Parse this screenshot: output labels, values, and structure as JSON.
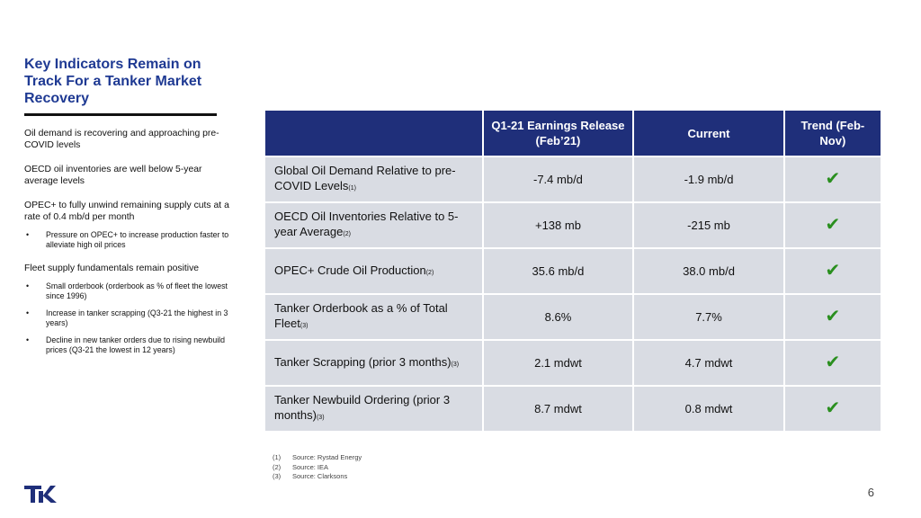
{
  "title": "Key Indicators Remain on Track For a Tanker Market Recovery",
  "bullets": [
    {
      "text": "Oil demand is recovering and approaching pre-COVID levels",
      "subs": []
    },
    {
      "text": "OECD oil inventories are well below 5-year average levels",
      "subs": []
    },
    {
      "text": "OPEC+ to fully unwind remaining supply cuts at a rate of 0.4 mb/d per month",
      "subs": [
        "Pressure on OPEC+ to increase production faster to alleviate high oil prices"
      ]
    },
    {
      "text": "Fleet supply fundamentals remain positive",
      "subs": [
        "Small orderbook (orderbook as % of fleet the lowest since 1996)",
        "Increase in tanker scrapping (Q3-21 the highest in 3 years)",
        "Decline in new tanker orders due to rising newbuild prices (Q3-21 the lowest in 12 years)"
      ]
    }
  ],
  "table": {
    "headers": {
      "col2": "Q1-21 Earnings Release (Feb’21)",
      "col3": "Current",
      "col4": "Trend (Feb-Nov)"
    },
    "rows": [
      {
        "label": "Global Oil Demand Relative to pre-COVID Levels",
        "note": "(1)",
        "q1": "-7.4 mb/d",
        "current": "-1.9 mb/d",
        "trend": "✔"
      },
      {
        "label": "OECD Oil Inventories Relative to 5-year Average",
        "note": "(2)",
        "q1": "+138 mb",
        "current": "-215 mb",
        "trend": "✔"
      },
      {
        "label": "OPEC+ Crude Oil Production",
        "note": "(2)",
        "q1": "35.6 mb/d",
        "current": "38.0 mb/d",
        "trend": "✔"
      },
      {
        "label": "Tanker Orderbook as a % of Total Fleet",
        "note": "(3)",
        "q1": "8.6%",
        "current": "7.7%",
        "trend": "✔"
      },
      {
        "label": "Tanker Scrapping (prior 3 months)",
        "note": "(3)",
        "q1": "2.1 mdwt",
        "current": "4.7 mdwt",
        "trend": "✔"
      },
      {
        "label": "Tanker Newbuild Ordering (prior 3 months)",
        "note": "(3)",
        "q1": "8.7 mdwt",
        "current": "0.8 mdwt",
        "trend": "✔"
      }
    ]
  },
  "sources": [
    {
      "num": "(1)",
      "text": "Source: Rystad Energy"
    },
    {
      "num": "(2)",
      "text": "Source: IEA"
    },
    {
      "num": "(3)",
      "text": "Source: Clarksons"
    }
  ],
  "logo_text": "TK",
  "page_number": "6",
  "colors": {
    "title": "#1f3a93",
    "header_bg": "#1f2f7a",
    "cell_bg": "#d9dce3",
    "check": "#2a8f1f"
  }
}
